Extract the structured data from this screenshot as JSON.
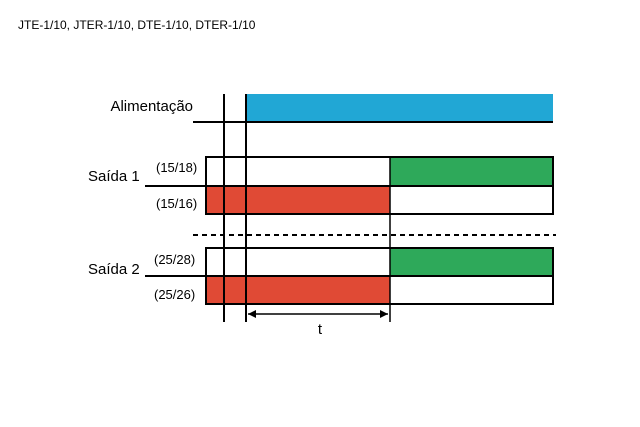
{
  "header": {
    "models": "JTE-1/10, JTER-1/10, DTE-1/10, DTER-1/10"
  },
  "diagram": {
    "supply_label": "Alimentação",
    "output1": {
      "label": "Saída 1",
      "contact_top": "(15/18)",
      "contact_bottom": "(15/16)"
    },
    "output2": {
      "label": "Saída 2",
      "contact_top": "(25/28)",
      "contact_bottom": "(25/26)"
    },
    "time_label": "t"
  },
  "colors": {
    "supply_on": "#21a7d5",
    "contact_closed_red": "#e04a35",
    "contact_closed_green": "#2ea95a",
    "line": "#000000"
  }
}
